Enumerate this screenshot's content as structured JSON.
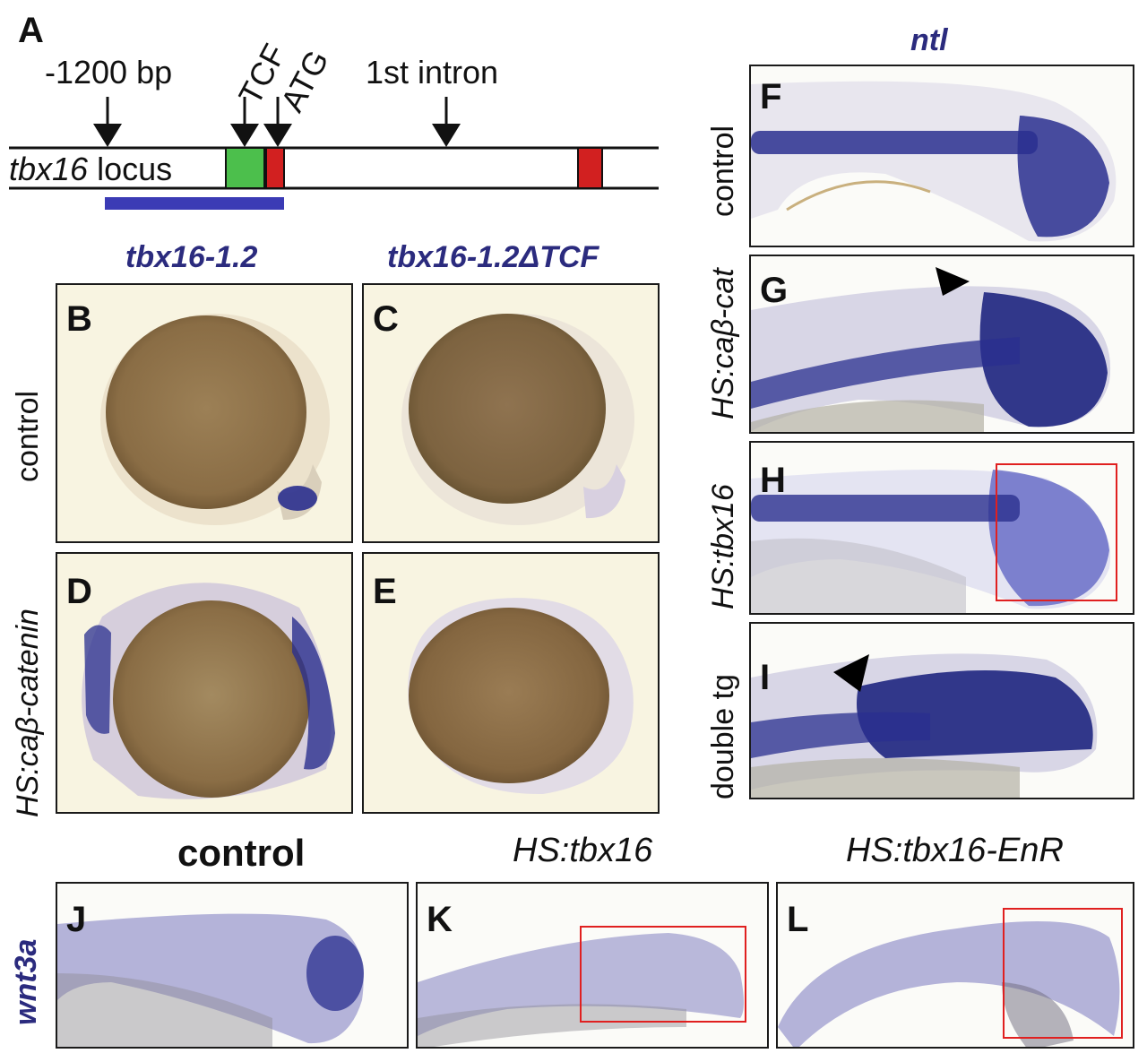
{
  "panel_A": {
    "label": "A",
    "bp_label": "-1200 bp",
    "tcf_label": "TCF",
    "atg_label": "ATG",
    "intron_label": "1st intron",
    "gene_label": "tbx16",
    "locus_label": "locus"
  },
  "col_headers": {
    "b": "tbx16-1.2",
    "c": "tbx16-1.2ΔTCF",
    "ntl": "ntl"
  },
  "row_labels": {
    "control": "control",
    "hs_cab_catenin": "HS:caβ-catenin",
    "f_control": "control",
    "g_hs_cab_cat": "HS:caβ-cat",
    "h_hs_tbx16": "HS:tbx16",
    "i_double_tg": "double tg",
    "wnt3a": "wnt3a"
  },
  "bottom_headers": {
    "j": "control",
    "k": "HS:tbx16",
    "l": "HS:tbx16-EnR"
  },
  "panels": {
    "B": "B",
    "C": "C",
    "D": "D",
    "E": "E",
    "F": "F",
    "G": "G",
    "H": "H",
    "I": "I",
    "J": "J",
    "K": "K",
    "L": "L"
  },
  "colors": {
    "stain": "#2a2f8f",
    "embryo": "#8a6d45",
    "tcf_box": "#4cbf4c",
    "exon": "#d22020",
    "probe_bar": "#3b3bb5",
    "highlight_box": "#e02020"
  }
}
